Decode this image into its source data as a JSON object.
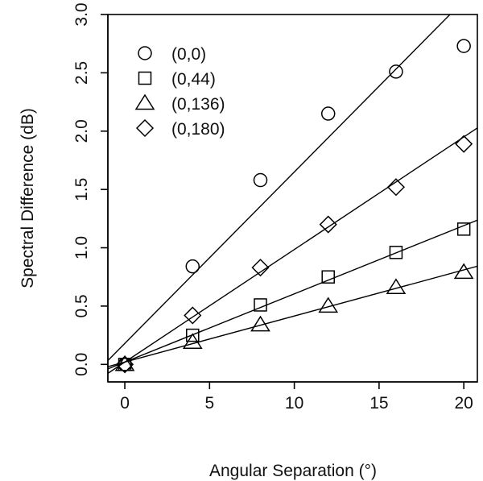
{
  "chart_data": {
    "type": "scatter",
    "xlabel": "Angular Separation (°)",
    "ylabel": "Spectral Difference (dB)",
    "xlim": [
      -1,
      20.8
    ],
    "ylim": [
      -0.15,
      3.0
    ],
    "x_ticks": [
      0,
      5,
      10,
      15,
      20
    ],
    "y_ticks": [
      0.0,
      0.5,
      1.0,
      1.5,
      2.0,
      2.5,
      3.0
    ],
    "x_tick_labels": [
      "0",
      "5",
      "10",
      "15",
      "20"
    ],
    "y_tick_labels": [
      "0.0",
      "0.5",
      "1.0",
      "1.5",
      "2.0",
      "2.5",
      "3.0"
    ],
    "legend_position": "top-left",
    "grid": false,
    "x": [
      0,
      4,
      8,
      12,
      16,
      20
    ],
    "series": [
      {
        "name": "(0,0)",
        "marker": "circle",
        "values": [
          0.0,
          0.84,
          1.58,
          2.15,
          2.51,
          2.73
        ],
        "fit": {
          "slope": 0.147,
          "intercept": 0.18
        }
      },
      {
        "name": "(0,44)",
        "marker": "square",
        "values": [
          0.0,
          0.25,
          0.51,
          0.75,
          0.96,
          1.16
        ],
        "fit": {
          "slope": 0.0585,
          "intercept": 0.02
        }
      },
      {
        "name": "(0,136)",
        "marker": "triangle",
        "values": [
          0.0,
          0.19,
          0.34,
          0.5,
          0.66,
          0.79
        ],
        "fit": {
          "slope": 0.0395,
          "intercept": 0.02
        }
      },
      {
        "name": "(0,180)",
        "marker": "diamond",
        "values": [
          0.0,
          0.42,
          0.83,
          1.2,
          1.52,
          1.89
        ],
        "fit": {
          "slope": 0.0965,
          "intercept": 0.02
        }
      }
    ]
  }
}
